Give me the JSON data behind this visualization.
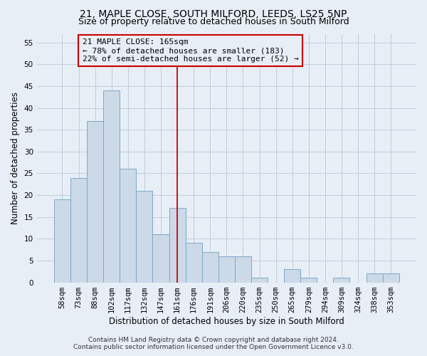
{
  "title1": "21, MAPLE CLOSE, SOUTH MILFORD, LEEDS, LS25 5NP",
  "title2": "Size of property relative to detached houses in South Milford",
  "xlabel": "Distribution of detached houses by size in South Milford",
  "ylabel": "Number of detached properties",
  "footnote1": "Contains HM Land Registry data © Crown copyright and database right 2024.",
  "footnote2": "Contains public sector information licensed under the Open Government Licence v3.0.",
  "bin_labels": [
    "58sqm",
    "73sqm",
    "88sqm",
    "102sqm",
    "117sqm",
    "132sqm",
    "147sqm",
    "161sqm",
    "176sqm",
    "191sqm",
    "206sqm",
    "220sqm",
    "235sqm",
    "250sqm",
    "265sqm",
    "279sqm",
    "294sqm",
    "309sqm",
    "324sqm",
    "338sqm",
    "353sqm"
  ],
  "bar_values": [
    19,
    24,
    37,
    44,
    26,
    21,
    11,
    17,
    9,
    7,
    6,
    6,
    1,
    0,
    3,
    1,
    0,
    1,
    0,
    2,
    2
  ],
  "bar_color": "#ccd9e8",
  "bar_edge_color": "#7aaac8",
  "grid_color": "#c0ccd8",
  "background_color": "#e8eef6",
  "marker_bin_index": 7,
  "marker_color": "#cc0000",
  "annotation_line1": "21 MAPLE CLOSE: 165sqm",
  "annotation_line2": "← 78% of detached houses are smaller (183)",
  "annotation_line3": "22% of semi-detached houses are larger (52) →",
  "ylim": [
    0,
    57
  ],
  "yticks": [
    0,
    5,
    10,
    15,
    20,
    25,
    30,
    35,
    40,
    45,
    50,
    55
  ],
  "title1_fontsize": 10,
  "title2_fontsize": 9,
  "xlabel_fontsize": 8.5,
  "ylabel_fontsize": 8.5,
  "tick_fontsize": 7.5,
  "annotation_fontsize": 8,
  "footnote_fontsize": 6.5
}
